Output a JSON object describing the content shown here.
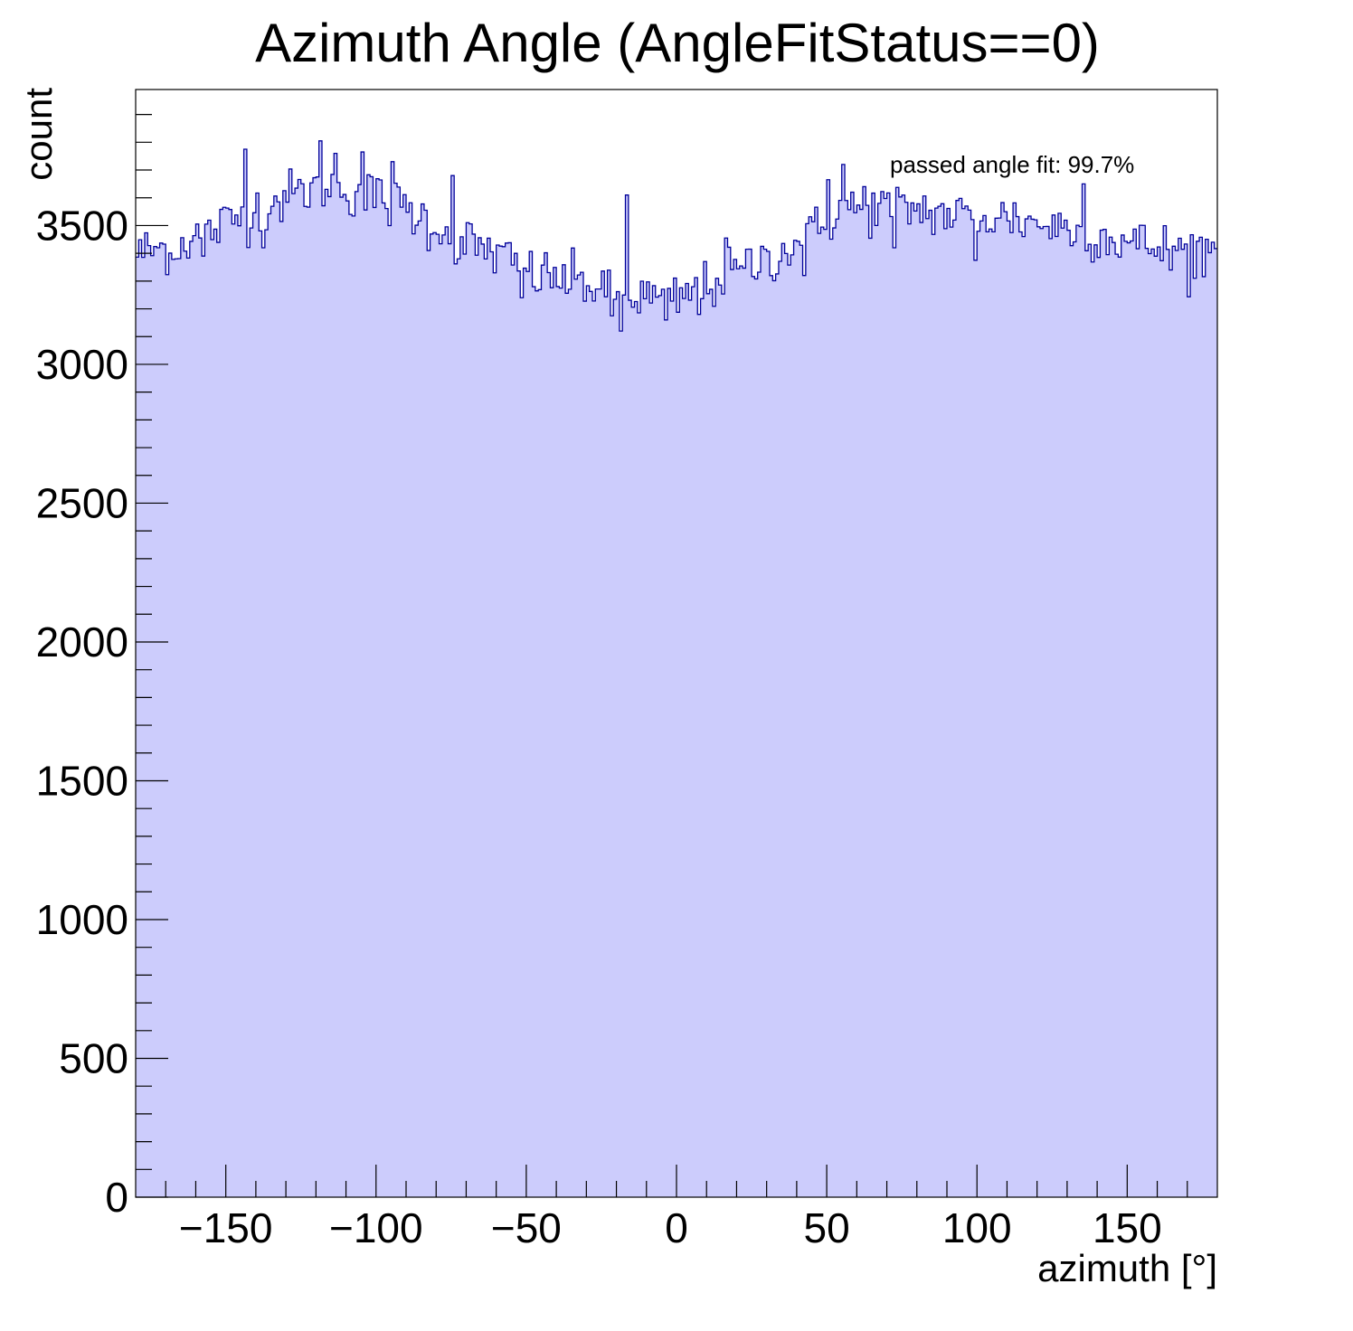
{
  "chart_data": {
    "type": "histogram",
    "title": "Azimuth Angle (AngleFitStatus==0)",
    "xlabel": "azimuth [°]",
    "ylabel": "count",
    "xlim": [
      -180,
      180
    ],
    "ylim": [
      0,
      3990
    ],
    "x_ticks": [
      -150,
      -100,
      -50,
      0,
      50,
      100,
      150
    ],
    "x_tick_labels": [
      "−150",
      "−100",
      "−50",
      "0",
      "50",
      "100",
      "150"
    ],
    "y_ticks": [
      0,
      500,
      1000,
      1500,
      2000,
      2500,
      3000,
      3500
    ],
    "y_tick_labels": [
      "0",
      "500",
      "1000",
      "1500",
      "2000",
      "2500",
      "3000",
      "3500"
    ],
    "annotation": "passed angle fit: 99.7%",
    "grid": false,
    "legend": "none",
    "bin_width": 1,
    "envelope_anchors": {
      "x": [
        -180,
        -170,
        -155,
        -140,
        -130,
        -118,
        -110,
        -100,
        -90,
        -80,
        -70,
        -60,
        -50,
        -40,
        -30,
        -20,
        -10,
        0,
        10,
        20,
        30,
        40,
        50,
        55,
        60,
        70,
        80,
        90,
        100,
        110,
        120,
        130,
        140,
        150,
        160,
        170,
        180
      ],
      "y": [
        3400,
        3420,
        3480,
        3560,
        3600,
        3650,
        3640,
        3600,
        3560,
        3500,
        3440,
        3400,
        3330,
        3310,
        3290,
        3260,
        3240,
        3230,
        3280,
        3330,
        3380,
        3430,
        3500,
        3560,
        3560,
        3570,
        3560,
        3540,
        3530,
        3530,
        3510,
        3490,
        3470,
        3440,
        3420,
        3410,
        3420
      ]
    },
    "peak_bins": {
      "x": [
        -143.5,
        -118.5,
        -113.5,
        -104.5,
        -94.5,
        -74.5,
        -16.5,
        16.5,
        50.5,
        55.5,
        62.5,
        135.5
      ],
      "y": [
        3775,
        3805,
        3760,
        3765,
        3730,
        3680,
        3610,
        3455,
        3665,
        3720,
        3640,
        3650
      ]
    },
    "dip_bins": {
      "x": [
        -166.5,
        -157.5,
        -137.5,
        -108.5,
        -82.5,
        -72.5,
        -51.5,
        -21.5,
        -18.5,
        -3.5,
        7.5,
        42.5,
        72.5,
        99.5,
        164.5,
        172.5
      ],
      "y": [
        3380,
        3390,
        3420,
        3540,
        3410,
        3380,
        3240,
        3175,
        3120,
        3160,
        3180,
        3320,
        3420,
        3375,
        3340,
        3310
      ]
    },
    "colors": {
      "fill": "#ccccfc",
      "line": "#000099",
      "axis": "#000000",
      "background": "#ffffff"
    }
  }
}
